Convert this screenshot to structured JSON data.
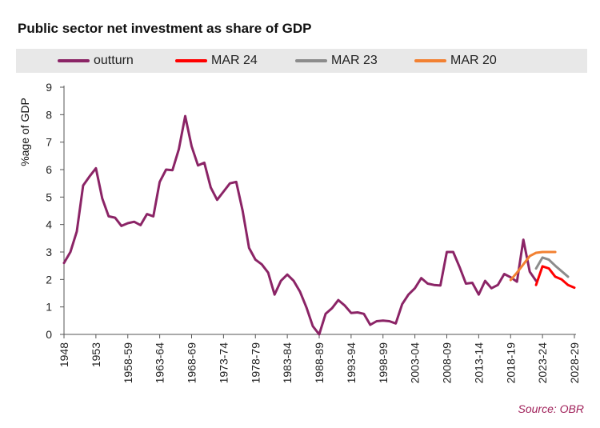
{
  "title": "Public sector net investment as share of GDP",
  "source": "Source: OBR",
  "legend": [
    {
      "name": "outturn",
      "color": "#8b2466"
    },
    {
      "name": "MAR 24",
      "color": "#ff0000"
    },
    {
      "name": "MAR 23",
      "color": "#8c8c8c"
    },
    {
      "name": "MAR 20",
      "color": "#f28132"
    }
  ],
  "chart_data": {
    "type": "line",
    "title": "Public sector net investment as share of GDP",
    "xlabel": "",
    "ylabel": "%age of GDP",
    "ylim": [
      0,
      9
    ],
    "yticks": [
      "0",
      "1",
      "2",
      "3",
      "4",
      "5",
      "6",
      "7",
      "8",
      "9"
    ],
    "x_count": 81,
    "x_tick_labels": [
      {
        "index": 0,
        "label": "1948"
      },
      {
        "index": 5,
        "label": "1953"
      },
      {
        "index": 10,
        "label": "1958-59"
      },
      {
        "index": 15,
        "label": "1963-64"
      },
      {
        "index": 20,
        "label": "1968-69"
      },
      {
        "index": 25,
        "label": "1973-74"
      },
      {
        "index": 30,
        "label": "1978-79"
      },
      {
        "index": 35,
        "label": "1983-84"
      },
      {
        "index": 40,
        "label": "1988-89"
      },
      {
        "index": 45,
        "label": "1993-94"
      },
      {
        "index": 50,
        "label": "1998-99"
      },
      {
        "index": 55,
        "label": "2003-04"
      },
      {
        "index": 60,
        "label": "2008-09"
      },
      {
        "index": 65,
        "label": "2013-14"
      },
      {
        "index": 70,
        "label": "2018-19"
      },
      {
        "index": 75,
        "label": "2023-24"
      },
      {
        "index": 80,
        "label": "2028-29"
      }
    ],
    "series": [
      {
        "name": "outturn",
        "color": "#8b2466",
        "start_index": 0,
        "values": [
          2.6,
          3.0,
          3.75,
          5.42,
          5.75,
          6.05,
          4.95,
          4.3,
          4.25,
          3.95,
          4.05,
          4.1,
          3.98,
          4.38,
          4.3,
          5.55,
          6.0,
          5.98,
          6.75,
          7.95,
          6.85,
          6.15,
          6.25,
          5.35,
          4.9,
          5.2,
          5.5,
          5.55,
          4.5,
          3.15,
          2.72,
          2.55,
          2.25,
          1.45,
          1.95,
          2.18,
          1.95,
          1.55,
          0.98,
          0.3,
          0.0,
          0.75,
          0.95,
          1.25,
          1.05,
          0.78,
          0.8,
          0.75,
          0.35,
          0.48,
          0.5,
          0.48,
          0.4,
          1.1,
          1.45,
          1.68,
          2.05,
          1.85,
          1.8,
          1.78,
          3.0,
          3.0,
          2.45,
          1.85,
          1.88,
          1.45,
          1.95,
          1.68,
          1.8,
          2.2,
          2.08,
          1.92,
          3.45,
          2.28,
          1.95
        ]
      },
      {
        "name": "MAR 24",
        "color": "#ff0000",
        "start_index": 74,
        "values": [
          1.8,
          2.48,
          2.4,
          2.1,
          2.0,
          1.8,
          1.7
        ]
      },
      {
        "name": "MAR 23",
        "color": "#8c8c8c",
        "start_index": 74,
        "values": [
          2.4,
          2.8,
          2.72,
          2.5,
          2.3,
          2.1
        ]
      },
      {
        "name": "MAR 20",
        "color": "#f28132",
        "start_index": 70,
        "values": [
          1.98,
          2.25,
          2.55,
          2.85,
          2.97,
          3.0,
          3.0,
          3.0
        ]
      }
    ]
  }
}
